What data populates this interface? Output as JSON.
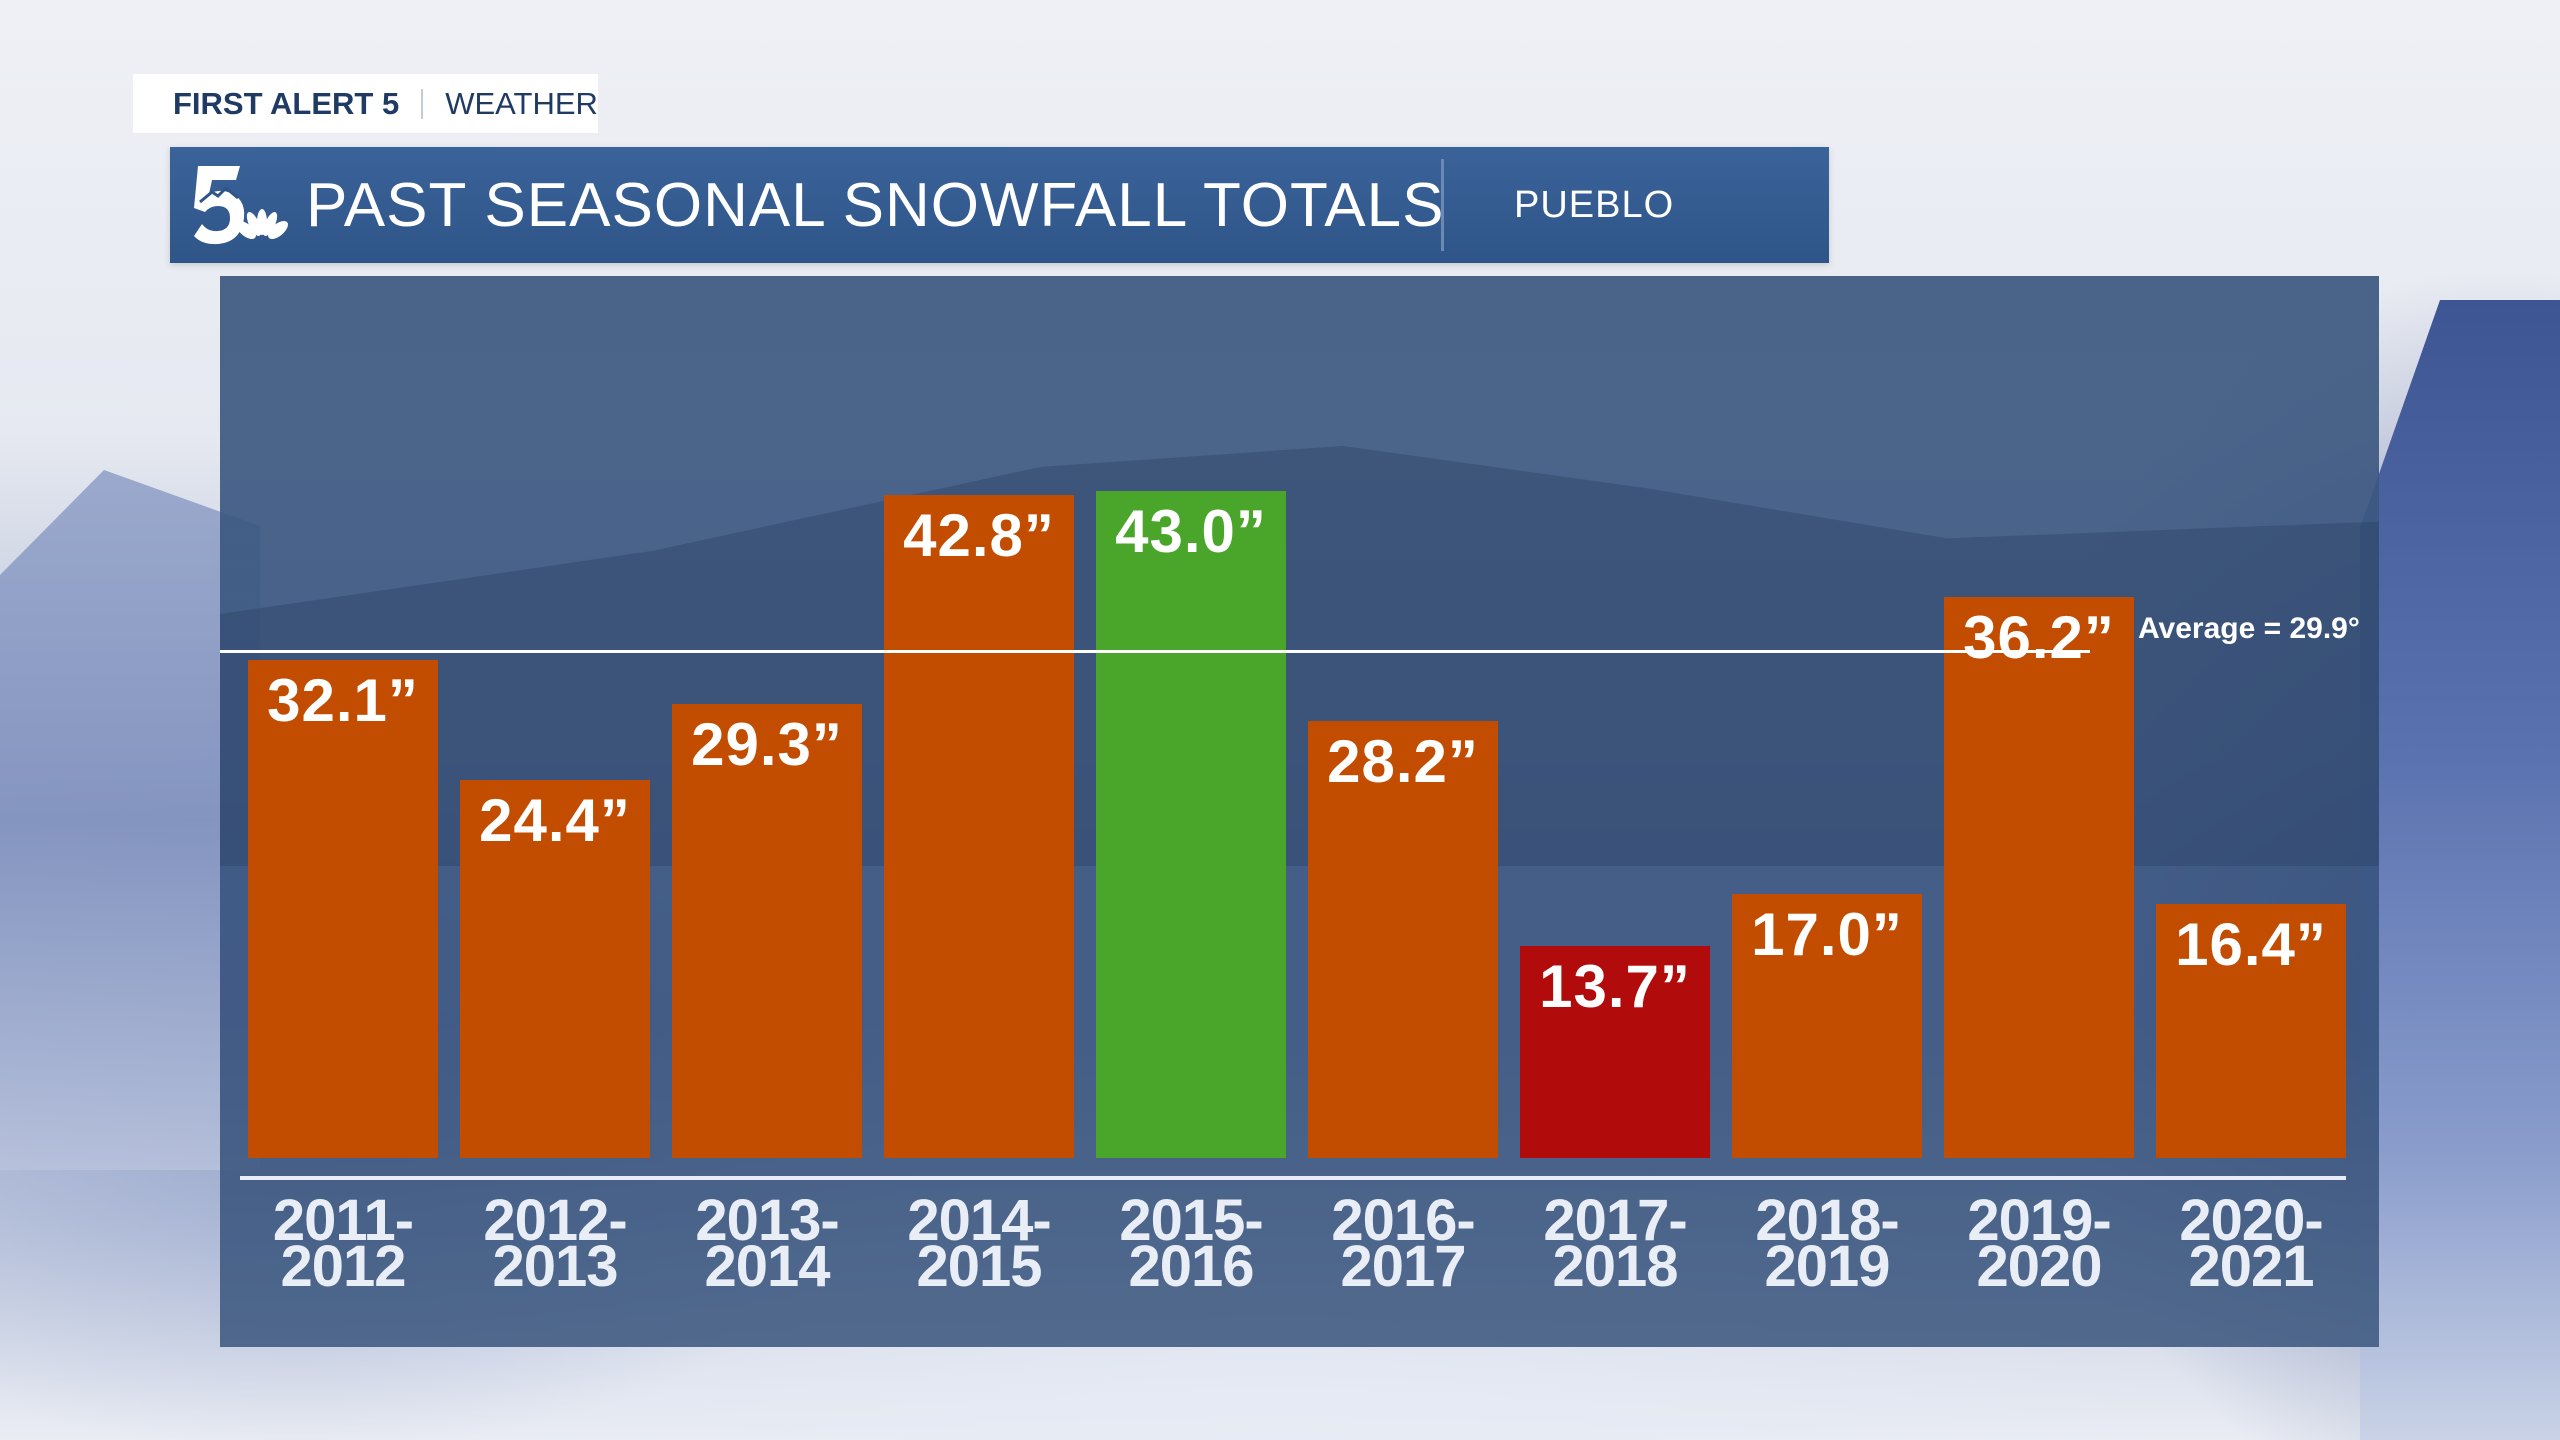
{
  "branding": {
    "tag_primary": "FIRST ALERT 5",
    "tag_secondary": "WEATHER",
    "logo": "nbc-5-peacock-logo"
  },
  "header": {
    "title": "PAST SEASONAL SNOWFALL TOTALS",
    "location": "PUEBLO"
  },
  "colors": {
    "bar_default": "#c24d00",
    "bar_max": "#4aa62a",
    "bar_min": "#b20b0b",
    "header_bg": "#34598e",
    "panel_bg": "#3c5880"
  },
  "average": {
    "label": "Average = 29.9°",
    "value": 29.9
  },
  "bars": [
    {
      "season_line1": "2011-",
      "season_line2": "2012",
      "label": "32.1”",
      "value": 32.1,
      "kind": "default"
    },
    {
      "season_line1": "2012-",
      "season_line2": "2013",
      "label": "24.4”",
      "value": 24.4,
      "kind": "default"
    },
    {
      "season_line1": "2013-",
      "season_line2": "2014",
      "label": "29.3”",
      "value": 29.3,
      "kind": "default"
    },
    {
      "season_line1": "2014-",
      "season_line2": "2015",
      "label": "42.8”",
      "value": 42.8,
      "kind": "default"
    },
    {
      "season_line1": "2015-",
      "season_line2": "2016",
      "label": "43.0”",
      "value": 43.0,
      "kind": "max"
    },
    {
      "season_line1": "2016-",
      "season_line2": "2017",
      "label": "28.2”",
      "value": 28.2,
      "kind": "default"
    },
    {
      "season_line1": "2017-",
      "season_line2": "2018",
      "label": "13.7”",
      "value": 13.7,
      "kind": "min"
    },
    {
      "season_line1": "2018-",
      "season_line2": "2019",
      "label": "17.0”",
      "value": 17.0,
      "kind": "default"
    },
    {
      "season_line1": "2019-",
      "season_line2": "2020",
      "label": "36.2”",
      "value": 36.2,
      "kind": "default"
    },
    {
      "season_line1": "2020-",
      "season_line2": "2021",
      "label": "16.4”",
      "value": 16.4,
      "kind": "default"
    }
  ],
  "chart_data": {
    "type": "bar",
    "title": "PAST SEASONAL SNOWFALL TOTALS",
    "subtitle": "PUEBLO",
    "categories": [
      "2011-2012",
      "2012-2013",
      "2013-2014",
      "2014-2015",
      "2015-2016",
      "2016-2017",
      "2017-2018",
      "2018-2019",
      "2019-2020",
      "2020-2021"
    ],
    "values": [
      32.1,
      24.4,
      29.3,
      42.8,
      43.0,
      28.2,
      13.7,
      17.0,
      36.2,
      16.4
    ],
    "units": "inches",
    "data_labels": [
      "32.1”",
      "24.4”",
      "29.3”",
      "42.8”",
      "43.0”",
      "28.2”",
      "13.7”",
      "17.0”",
      "36.2”",
      "16.4”"
    ],
    "highlight": {
      "max": "2015-2016",
      "min": "2017-2018"
    },
    "reference_lines": [
      {
        "label": "Average = 29.9°",
        "value": 29.9
      }
    ],
    "xlabel": "",
    "ylabel": "",
    "ylim": [
      0,
      45
    ],
    "grid": false,
    "legend": null
  }
}
